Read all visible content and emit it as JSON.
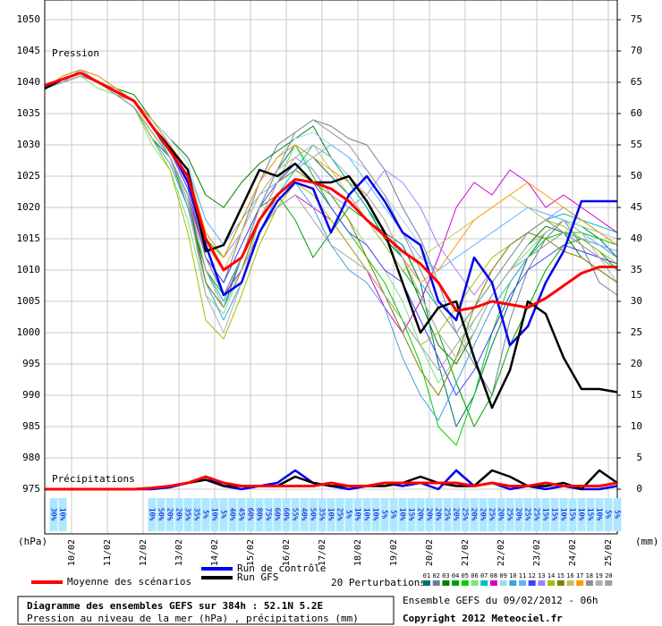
{
  "chart_data": {
    "type": "line",
    "title": "Diagramme des ensembles GEFS sur 384h : 52.1N 5.2E",
    "subtitle": "Pression au niveau de la mer (hPa) , précipitations (mm)",
    "run_info": "Ensemble GEFS du 09/02/2012 - 06h",
    "copyright": "Copyright 2012 Meteociel.fr",
    "pressure_label": "Pression",
    "precip_label": "Précipitations",
    "ylabel": "(hPa)",
    "y2label": "(mm)",
    "perturbations_label": "20 Perturbations",
    "grid": true,
    "x": [
      0,
      12,
      24,
      36,
      48,
      60,
      72,
      84,
      96,
      108,
      120,
      132,
      144,
      156,
      168,
      180,
      192,
      204,
      216,
      228,
      240,
      252,
      264,
      276,
      288,
      300,
      312,
      324,
      336,
      348,
      360,
      372,
      384
    ],
    "xlim": [
      0,
      384
    ],
    "xticks": [
      {
        "value": 18,
        "label": "10/02"
      },
      {
        "value": 42,
        "label": "11/02"
      },
      {
        "value": 66,
        "label": "12/02"
      },
      {
        "value": 90,
        "label": "13/02"
      },
      {
        "value": 114,
        "label": "14/02"
      },
      {
        "value": 138,
        "label": "15/02"
      },
      {
        "value": 162,
        "label": "16/02"
      },
      {
        "value": 186,
        "label": "17/02"
      },
      {
        "value": 210,
        "label": "18/02"
      },
      {
        "value": 234,
        "label": "19/02"
      },
      {
        "value": 258,
        "label": "20/02"
      },
      {
        "value": 282,
        "label": "21/02"
      },
      {
        "value": 306,
        "label": "22/02"
      },
      {
        "value": 330,
        "label": "23/02"
      },
      {
        "value": 354,
        "label": "24/02"
      },
      {
        "value": 378,
        "label": "25/02"
      }
    ],
    "ylim": [
      975,
      1050
    ],
    "yticks": [
      975,
      980,
      985,
      990,
      995,
      1000,
      1005,
      1010,
      1015,
      1020,
      1025,
      1030,
      1035,
      1040,
      1045,
      1050
    ],
    "y2lim": [
      0,
      75
    ],
    "y2ticks": [
      0,
      5,
      10,
      15,
      20,
      25,
      30,
      35,
      40,
      45,
      50,
      55,
      60,
      65,
      70,
      75
    ],
    "precip_probability": {
      "x": [
        6,
        12,
        72,
        78,
        84,
        90,
        96,
        102,
        108,
        114,
        120,
        126,
        132,
        138,
        144,
        150,
        156,
        162,
        168,
        174,
        180,
        186,
        192,
        198,
        204,
        210,
        216,
        222,
        228,
        234,
        240,
        246,
        252,
        258,
        264,
        270,
        276,
        282,
        288,
        294,
        300,
        306,
        312,
        318,
        324,
        330,
        336,
        342,
        348,
        354,
        360,
        366,
        372,
        378,
        384
      ],
      "labels": [
        "30%",
        "10%",
        "10%",
        "50%",
        "20%",
        "20%",
        "35%",
        "35%",
        "5%",
        "10%",
        "5%",
        "40%",
        "45%",
        "60%",
        "80%",
        "75%",
        "60%",
        "60%",
        "55%",
        "40%",
        "50%",
        "35%",
        "10%",
        "25%",
        "5%",
        "10%",
        "10%",
        "10%",
        "5%",
        "5%",
        "10%",
        "15%",
        "20%",
        "20%",
        "20%",
        "25%",
        "20%",
        "25%",
        "20%",
        "20%",
        "25%",
        "20%",
        "25%",
        "20%",
        "25%",
        "25%",
        "15%",
        "15%",
        "10%",
        "15%",
        "10%",
        "15%",
        "10%",
        "5%",
        "5%"
      ]
    },
    "series": [
      {
        "name": "Moyenne des scénarios",
        "color": "#ff0000",
        "values": [
          1039.5,
          1040.5,
          1041.5,
          1040,
          1038.5,
          1037,
          1033,
          1029,
          1025,
          1015,
          1010,
          1012,
          1018,
          1022,
          1024.5,
          1024,
          1023,
          1021,
          1018,
          1015.5,
          1013,
          1011,
          1008,
          1003.5,
          1004,
          1005,
          1004.5,
          1004,
          1005.5,
          1007.5,
          1009.5,
          1010.5,
          1010.5
        ],
        "precip_values": [
          0,
          0,
          0,
          0,
          0,
          0,
          0.2,
          0.5,
          1,
          2,
          1,
          0.5,
          0.5,
          0.5,
          0.5,
          0.5,
          1,
          0.5,
          0.5,
          1,
          1,
          1,
          1,
          1,
          0.5,
          1,
          0.5,
          0.5,
          1,
          0.5,
          0.5,
          0.5,
          1
        ]
      },
      {
        "name": "Run de contrôle",
        "color": "#0000ee",
        "values": [
          1039,
          1040.5,
          1041.5,
          1040,
          1038.5,
          1037,
          1033,
          1029.5,
          1024,
          1014,
          1006,
          1008,
          1016,
          1021,
          1024,
          1023,
          1016,
          1022,
          1025,
          1021,
          1016,
          1014,
          1005,
          1002,
          1012,
          1008,
          998,
          1001,
          1008,
          1013,
          1021,
          1021,
          1021
        ],
        "precip_values": [
          0,
          0,
          0,
          0,
          0,
          0,
          0,
          0.3,
          1,
          2,
          0.5,
          0,
          0.5,
          1,
          3,
          1,
          0.5,
          0,
          0.5,
          1,
          0.5,
          1,
          0,
          3,
          0.5,
          1,
          0,
          0.5,
          0,
          0.5,
          0,
          0,
          0.5
        ]
      },
      {
        "name": "Run GFS",
        "color": "#000000",
        "values": [
          1039,
          1040.5,
          1041.5,
          1040,
          1038.5,
          1037,
          1033,
          1029.5,
          1026,
          1013,
          1014,
          1020,
          1026,
          1025,
          1027,
          1024,
          1024,
          1025,
          1021,
          1016,
          1008,
          1000,
          1004,
          1005,
          996,
          988,
          994,
          1005,
          1003,
          996,
          991,
          991,
          990.5
        ],
        "precip_values": [
          0,
          0,
          0,
          0,
          0,
          0,
          0.2,
          0.5,
          1,
          1.5,
          0.5,
          0.5,
          0.5,
          0.5,
          2,
          1,
          0.5,
          0.5,
          0.5,
          0.5,
          1,
          2,
          1,
          0.5,
          0.5,
          3,
          2,
          0.5,
          0.5,
          1,
          0,
          3,
          1
        ]
      },
      {
        "name": "01",
        "color": "#007070",
        "values": [
          1039,
          1040,
          1041,
          1040,
          1038,
          1036,
          1031,
          1028,
          1022,
          1008,
          1004,
          1012,
          1020,
          1026,
          1030,
          1028,
          1025,
          1022,
          1018,
          1016,
          1014,
          1008,
          995,
          985,
          990,
          998,
          1005,
          1012,
          1016,
          1018,
          1017,
          1015,
          1012
        ]
      },
      {
        "name": "02",
        "color": "#708090",
        "values": [
          1039,
          1040,
          1042,
          1040,
          1039,
          1037,
          1034,
          1030,
          1025,
          1012,
          1008,
          1016,
          1024,
          1030,
          1032,
          1034,
          1033,
          1031,
          1030,
          1026,
          1020,
          1015,
          1008,
          1000,
          995,
          990,
          1002,
          1010,
          1015,
          1018,
          1014,
          1008,
          1006
        ]
      },
      {
        "name": "03",
        "color": "#008000",
        "values": [
          1039,
          1041,
          1042,
          1041,
          1039,
          1038,
          1034,
          1031,
          1028,
          1022,
          1020,
          1024,
          1027,
          1029,
          1031,
          1033,
          1028,
          1024,
          1020,
          1015,
          1012,
          1005,
          998,
          995,
          1000,
          1006,
          1010,
          1014,
          1017,
          1016,
          1012,
          1010,
          1008
        ]
      },
      {
        "name": "04",
        "color": "#00a000",
        "values": [
          1039,
          1040,
          1041,
          1040,
          1038,
          1036,
          1032,
          1028,
          1020,
          1010,
          1006,
          1012,
          1020,
          1022,
          1018,
          1012,
          1016,
          1020,
          1018,
          1014,
          1010,
          1006,
          1000,
          992,
          985,
          990,
          998,
          1004,
          1010,
          1014,
          1015,
          1013,
          1010
        ]
      },
      {
        "name": "05",
        "color": "#00d000",
        "values": [
          1039,
          1040,
          1041,
          1040,
          1038,
          1037,
          1033,
          1029,
          1024,
          1015,
          1012,
          1018,
          1024,
          1028,
          1030,
          1025,
          1020,
          1016,
          1012,
          1008,
          1002,
          995,
          985,
          982,
          990,
          1000,
          1008,
          1012,
          1015,
          1016,
          1016,
          1015,
          1014
        ]
      },
      {
        "name": "06",
        "color": "#80e080",
        "values": [
          1039,
          1040,
          1041,
          1039,
          1038,
          1036,
          1030,
          1026,
          1018,
          1006,
          1003,
          1010,
          1018,
          1024,
          1030,
          1026,
          1022,
          1018,
          1014,
          1010,
          1005,
          998,
          992,
          996,
          1002,
          1006,
          1010,
          1013,
          1016,
          1018,
          1017,
          1016,
          1014
        ]
      },
      {
        "name": "07",
        "color": "#00c0c0",
        "values": [
          1039,
          1040,
          1042,
          1040,
          1039,
          1037,
          1033,
          1028,
          1022,
          1010,
          1005,
          1012,
          1018,
          1022,
          1026,
          1030,
          1028,
          1024,
          1020,
          1016,
          1012,
          1008,
          1004,
          1000,
          1004,
          1008,
          1012,
          1016,
          1018,
          1019,
          1018,
          1017,
          1016
        ]
      },
      {
        "name": "08",
        "color": "#d000d0",
        "values": [
          1039,
          1040,
          1041,
          1040,
          1038,
          1036,
          1032,
          1028,
          1022,
          1012,
          1006,
          1010,
          1016,
          1020,
          1022,
          1020,
          1018,
          1014,
          1010,
          1004,
          1000,
          1005,
          1012,
          1020,
          1024,
          1022,
          1026,
          1024,
          1020,
          1022,
          1020,
          1018,
          1016
        ]
      },
      {
        "name": "09",
        "color": "#a0d8f0",
        "values": [
          1039,
          1041,
          1042,
          1041,
          1039,
          1037,
          1034,
          1031,
          1027,
          1018,
          1014,
          1018,
          1024,
          1028,
          1031,
          1032,
          1030,
          1028,
          1026,
          1022,
          1018,
          1014,
          1008,
          1004,
          1000,
          1006,
          1010,
          1012,
          1014,
          1016,
          1018,
          1016,
          1015
        ]
      },
      {
        "name": "10",
        "color": "#40a0e0",
        "values": [
          1039,
          1040,
          1041,
          1040,
          1038,
          1036,
          1031,
          1027,
          1020,
          1008,
          1002,
          1008,
          1016,
          1022,
          1024,
          1020,
          1014,
          1010,
          1008,
          1004,
          996,
          990,
          986,
          992,
          998,
          1004,
          1008,
          1012,
          1014,
          1016,
          1015,
          1014,
          1012
        ]
      },
      {
        "name": "11",
        "color": "#60b0ff",
        "values": [
          1039,
          1040,
          1041,
          1040,
          1038,
          1037,
          1034,
          1030,
          1026,
          1018,
          1014,
          1018,
          1022,
          1024,
          1026,
          1028,
          1030,
          1028,
          1024,
          1020,
          1016,
          1012,
          1010,
          1012,
          1014,
          1016,
          1018,
          1020,
          1019,
          1018,
          1016,
          1014,
          1013
        ]
      },
      {
        "name": "12",
        "color": "#4040ff",
        "values": [
          1039,
          1040,
          1041,
          1040,
          1039,
          1037,
          1033,
          1029,
          1023,
          1012,
          1008,
          1014,
          1020,
          1024,
          1027,
          1024,
          1020,
          1016,
          1014,
          1010,
          1008,
          1002,
          996,
          990,
          994,
          1000,
          1006,
          1010,
          1012,
          1014,
          1013,
          1012,
          1011
        ]
      },
      {
        "name": "13",
        "color": "#a080ff",
        "values": [
          1039,
          1040,
          1042,
          1040,
          1039,
          1037,
          1033,
          1030,
          1025,
          1016,
          1012,
          1016,
          1022,
          1026,
          1028,
          1026,
          1022,
          1020,
          1022,
          1026,
          1024,
          1020,
          1014,
          1010,
          1006,
          1010,
          1014,
          1016,
          1018,
          1020,
          1018,
          1016,
          1014
        ]
      },
      {
        "name": "14",
        "color": "#a0c000",
        "values": [
          1039,
          1040,
          1041,
          1040,
          1038,
          1036,
          1031,
          1026,
          1016,
          1002,
          999,
          1006,
          1014,
          1020,
          1024,
          1022,
          1018,
          1014,
          1010,
          1006,
          1002,
          998,
          1000,
          1004,
          1008,
          1012,
          1014,
          1016,
          1018,
          1017,
          1015,
          1013,
          1011
        ]
      },
      {
        "name": "15",
        "color": "#808000",
        "values": [
          1039,
          1040,
          1041,
          1040,
          1038,
          1036,
          1032,
          1028,
          1021,
          1008,
          1004,
          1010,
          1018,
          1024,
          1026,
          1024,
          1022,
          1018,
          1012,
          1006,
          1000,
          994,
          990,
          996,
          1004,
          1010,
          1014,
          1016,
          1015,
          1013,
          1012,
          1010,
          1008
        ]
      },
      {
        "name": "16",
        "color": "#c0c060",
        "values": [
          1039,
          1040,
          1041,
          1040,
          1039,
          1037,
          1033,
          1029,
          1024,
          1014,
          1010,
          1016,
          1022,
          1026,
          1028,
          1030,
          1026,
          1022,
          1018,
          1014,
          1010,
          1012,
          1014,
          1016,
          1018,
          1020,
          1022,
          1020,
          1018,
          1016,
          1014,
          1012,
          1010
        ]
      },
      {
        "name": "17",
        "color": "#ff9900",
        "values": [
          1039,
          1041,
          1042,
          1041,
          1039,
          1037,
          1034,
          1030,
          1026,
          1016,
          1012,
          1018,
          1024,
          1028,
          1030,
          1028,
          1026,
          1024,
          1022,
          1018,
          1012,
          1008,
          1010,
          1014,
          1018,
          1020,
          1022,
          1024,
          1022,
          1020,
          1018,
          1016,
          1014
        ]
      },
      {
        "name": "18",
        "color": "#909090",
        "values": [
          1039,
          1040,
          1041,
          1040,
          1038,
          1037,
          1033,
          1029,
          1024,
          1012,
          1006,
          1012,
          1020,
          1026,
          1032,
          1034,
          1032,
          1030,
          1026,
          1022,
          1016,
          1010,
          1004,
          1000,
          1004,
          1008,
          1012,
          1016,
          1018,
          1016,
          1014,
          1012,
          1010
        ]
      },
      {
        "name": "19",
        "color": "#b0b0b0",
        "values": [
          1039,
          1040,
          1041,
          1040,
          1038,
          1036,
          1032,
          1028,
          1021,
          1006,
          1000,
          1008,
          1018,
          1024,
          1028,
          1030,
          1028,
          1025,
          1022,
          1018,
          1012,
          1006,
          1000,
          996,
          1000,
          1006,
          1010,
          1014,
          1016,
          1018,
          1016,
          1012,
          1008
        ]
      },
      {
        "name": "20",
        "color": "#a0a0a0",
        "values": [
          1039,
          1040,
          1041,
          1040,
          1038,
          1036,
          1032,
          1028,
          1022,
          1010,
          1004,
          1010,
          1016,
          1020,
          1022,
          1018,
          1014,
          1012,
          1010,
          1006,
          1002,
          998,
          994,
          998,
          1002,
          1006,
          1010,
          1012,
          1014,
          1016,
          1014,
          1012,
          1010
        ]
      }
    ]
  }
}
